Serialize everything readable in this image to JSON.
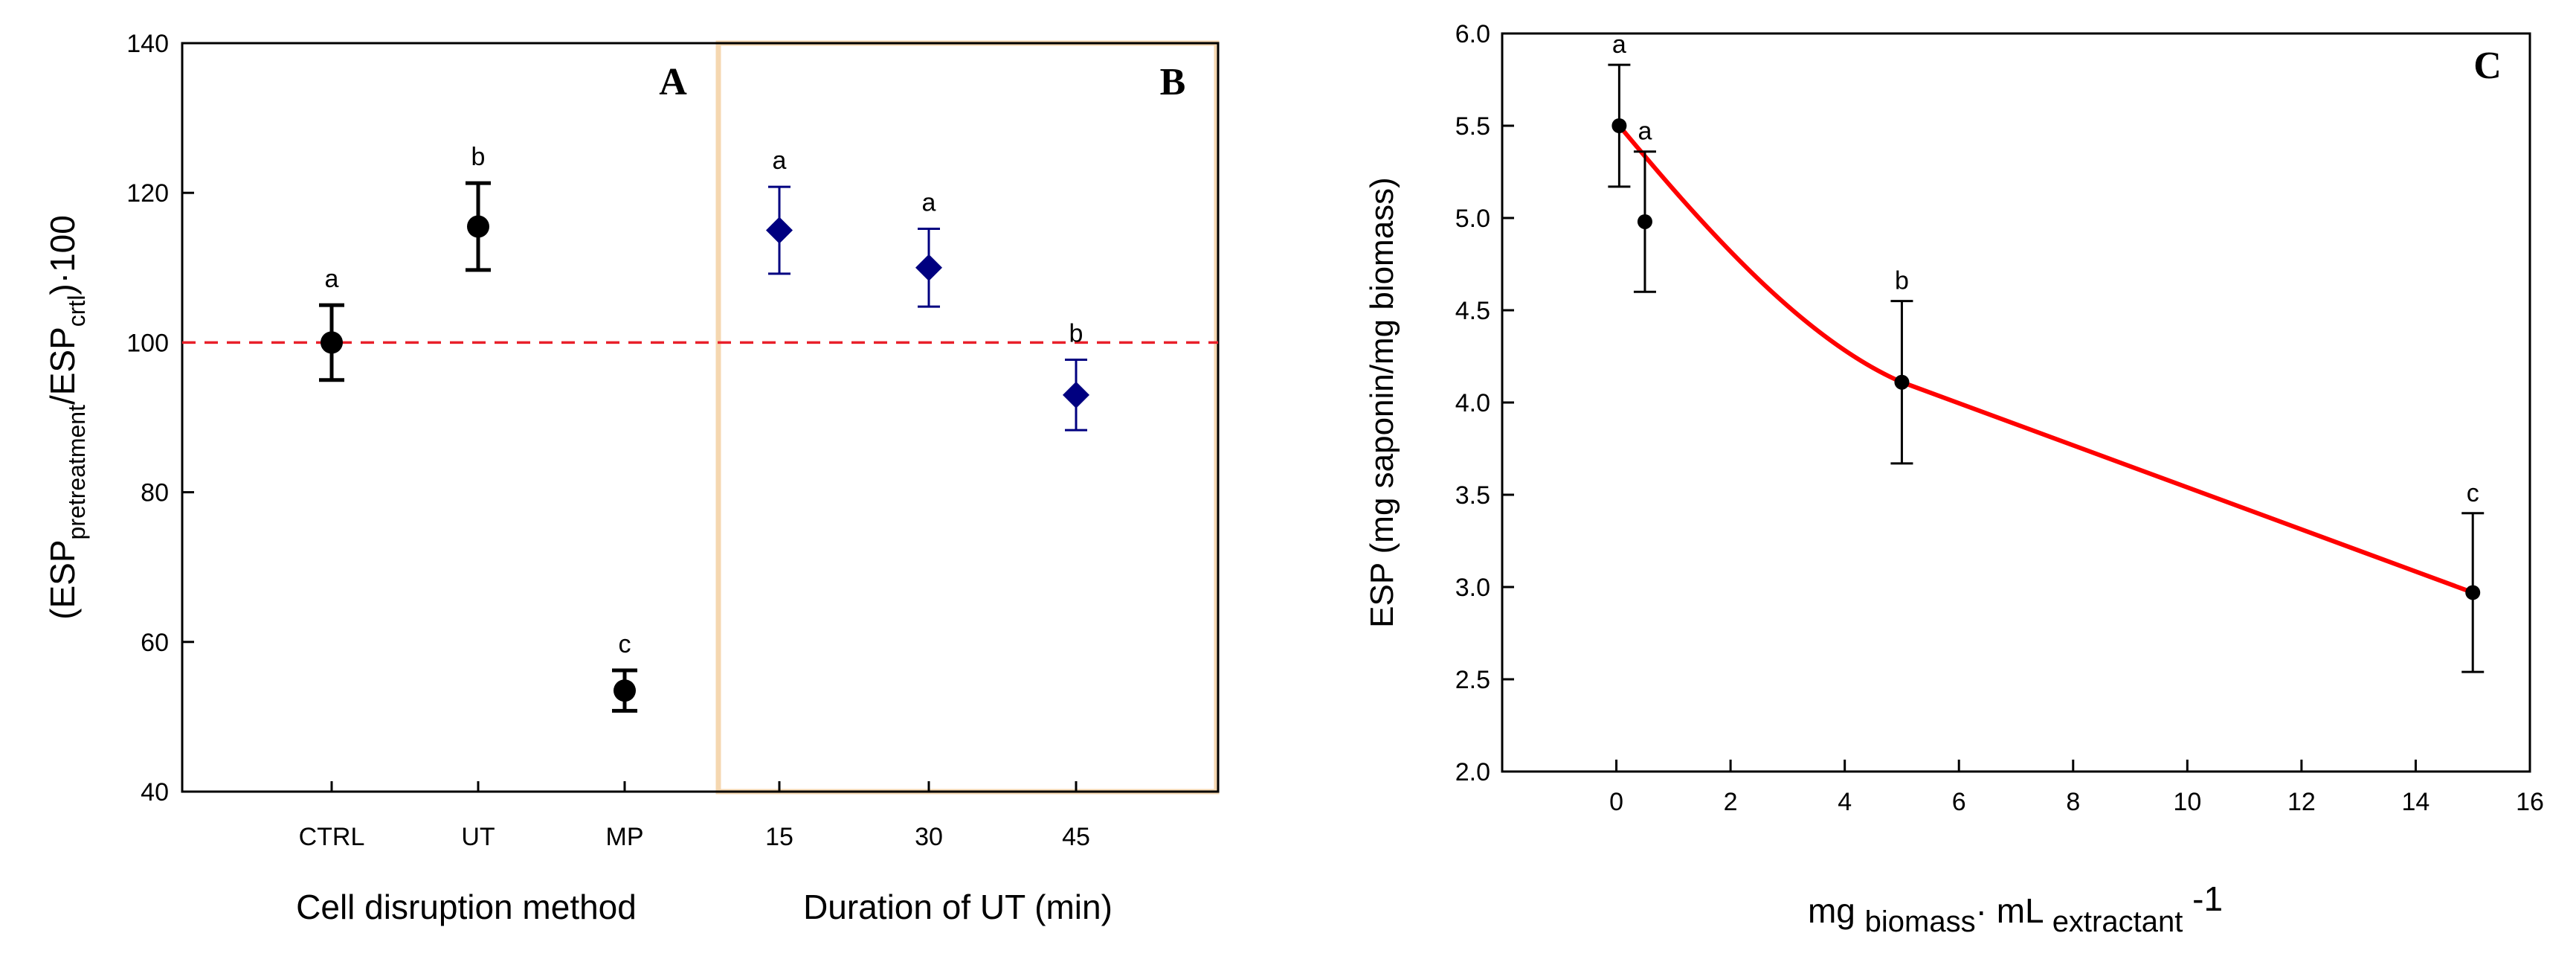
{
  "chart_data": [
    {
      "type": "scatter",
      "panel_label": "A",
      "ylabel_parts": {
        "open": "(ESP",
        "sub1": "pretreatment",
        "slash": "/ESP",
        "sub2": "crtl",
        "close": ")·100"
      },
      "xlabel": "Cell disruption method",
      "ylim": [
        40,
        140
      ],
      "yticks": [
        "40",
        "60",
        "80",
        "100",
        "120",
        "140"
      ],
      "categories": [
        "CTRL",
        "UT",
        "MP"
      ],
      "values": [
        100,
        115.5,
        53.5
      ],
      "errors": [
        5,
        5.8,
        2.7
      ],
      "letters": [
        "a",
        "b",
        "c"
      ],
      "marker": "circle",
      "color": "#000000",
      "reference_line": {
        "y": 100,
        "color": "#e8202a",
        "style": "dashed"
      }
    },
    {
      "type": "scatter",
      "panel_label": "B",
      "xlabel": "Duration of UT (min)",
      "categories": [
        "15",
        "30",
        "45"
      ],
      "values": [
        115,
        110,
        93
      ],
      "errors": [
        5.8,
        5.2,
        4.7
      ],
      "letters": [
        "a",
        "a",
        "b"
      ],
      "marker": "diamond",
      "color": "#000080",
      "box_color": "#f5d7b0"
    },
    {
      "type": "line",
      "panel_label": "C",
      "ylabel": "ESP (mg saponin/mg biomass)",
      "xlabel_parts": {
        "t1": "mg ",
        "sub1": "biomass",
        "t2": "· mL ",
        "sub2": "extractant",
        "sup": " -1"
      },
      "xlim": [
        -2,
        16
      ],
      "ylim": [
        2.0,
        6.0
      ],
      "xticks": [
        "0",
        "2",
        "4",
        "6",
        "8",
        "10",
        "12",
        "14",
        "16"
      ],
      "yticks": [
        "2.0",
        "2.5",
        "3.0",
        "3.5",
        "4.0",
        "4.5",
        "5.0",
        "5.5",
        "6.0"
      ],
      "points": [
        {
          "x": 0.05,
          "y": 5.5,
          "err": 0.33,
          "letter": "a"
        },
        {
          "x": 0.5,
          "y": 4.98,
          "err": 0.38,
          "letter": "a"
        },
        {
          "x": 5,
          "y": 4.11,
          "err": 0.44,
          "letter": "b"
        },
        {
          "x": 15,
          "y": 2.97,
          "err": 0.43,
          "letter": "c"
        }
      ],
      "fit_color": "#ff0000"
    }
  ]
}
